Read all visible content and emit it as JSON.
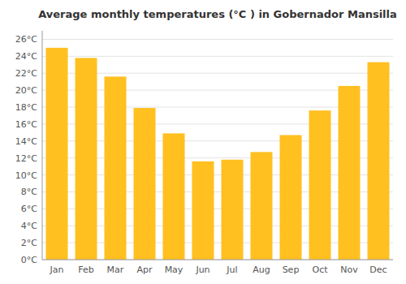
{
  "chart_data": {
    "type": "bar",
    "title": "Average monthly temperatures (°C ) in Gobernador Mansilla",
    "categories": [
      "Jan",
      "Feb",
      "Mar",
      "Apr",
      "May",
      "Jun",
      "Jul",
      "Aug",
      "Sep",
      "Oct",
      "Nov",
      "Dec"
    ],
    "values": [
      25.0,
      23.8,
      21.6,
      17.9,
      14.9,
      11.6,
      11.8,
      12.7,
      14.7,
      17.6,
      20.5,
      23.3
    ],
    "color": "#FFC020",
    "ylim": [
      0,
      27
    ],
    "yticks": [
      {
        "value": 0,
        "label": "0°C"
      },
      {
        "value": 2,
        "label": "2°C"
      },
      {
        "value": 4,
        "label": "4°C"
      },
      {
        "value": 6,
        "label": "6°C"
      },
      {
        "value": 8,
        "label": "8°C"
      },
      {
        "value": 10,
        "label": "10°C"
      },
      {
        "value": 12,
        "label": "12°C"
      },
      {
        "value": 14,
        "label": "14°C"
      },
      {
        "value": 16,
        "label": "16°C"
      },
      {
        "value": 18,
        "label": "18°C"
      },
      {
        "value": 20,
        "label": "20°C"
      },
      {
        "value": 22,
        "label": "22°C"
      },
      {
        "value": 24,
        "label": "24°C"
      },
      {
        "value": 26,
        "label": "26°C"
      }
    ],
    "grid": true
  }
}
